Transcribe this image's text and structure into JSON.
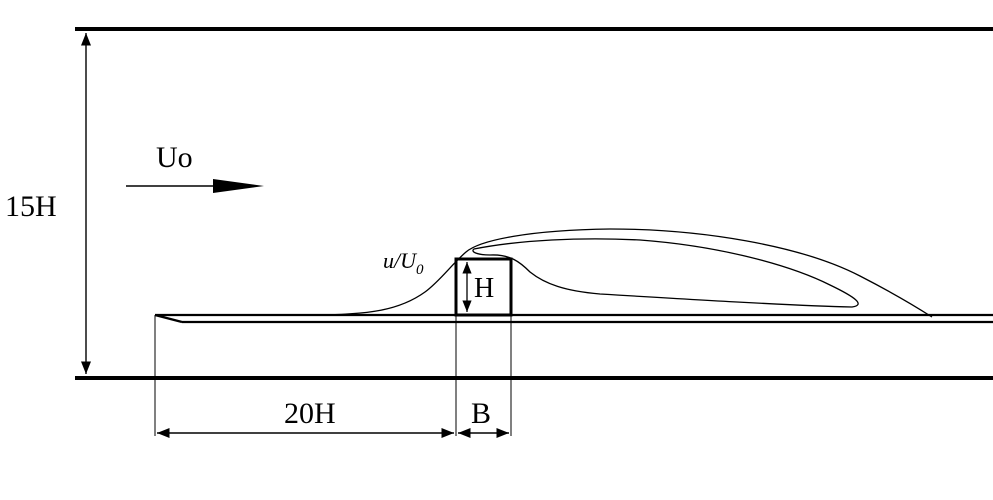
{
  "labels": {
    "inflow_velocity": "Uo",
    "domain_height": "15H",
    "upstream_length": "20H",
    "obstacle_height": "H",
    "obstacle_width": "B",
    "profile_label_main": "u/U",
    "profile_label_sub": "0"
  }
}
